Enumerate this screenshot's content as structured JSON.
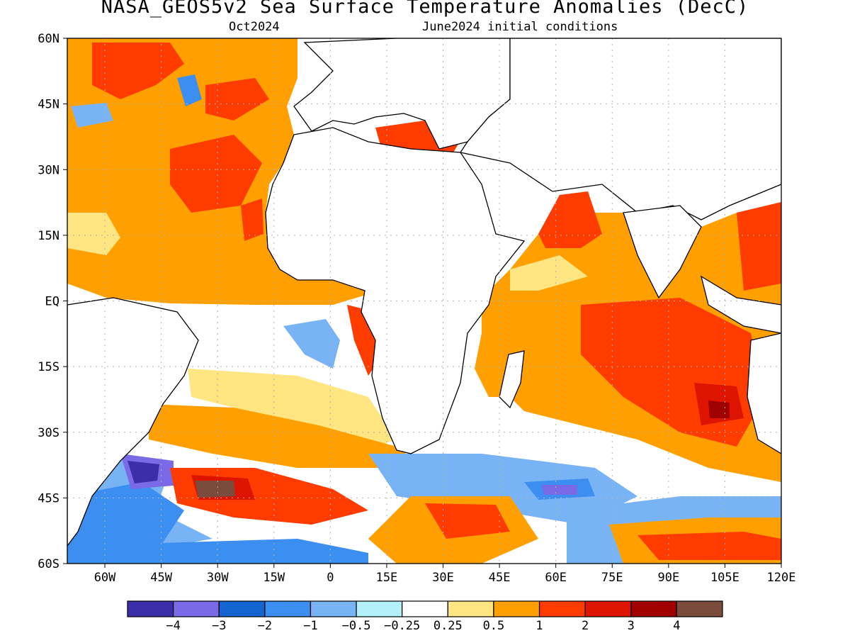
{
  "header": {
    "title": "NASA_GEOS5v2 Sea Surface Temperature Anomalies (DecC)",
    "valid_month": "Oct2024",
    "init": "June2024 initial conditions"
  },
  "map": {
    "lat_labels": [
      "60N",
      "45N",
      "30N",
      "15N",
      "EQ",
      "15S",
      "30S",
      "45S",
      "60S"
    ],
    "lon_labels": [
      "60W",
      "45W",
      "30W",
      "15W",
      "0",
      "15E",
      "30E",
      "45E",
      "60E",
      "75E",
      "90E",
      "105E",
      "120E"
    ],
    "lat_values": [
      60,
      45,
      30,
      15,
      0,
      -15,
      -30,
      -45,
      -60
    ],
    "lon_values": [
      -60,
      -45,
      -30,
      -15,
      0,
      15,
      30,
      45,
      60,
      75,
      90,
      105,
      120
    ],
    "lon_range": [
      -70,
      120
    ],
    "lat_range": [
      -60,
      60
    ],
    "grid": true
  },
  "colorbar": {
    "colors": [
      "#3c2ea8",
      "#7b6ae6",
      "#1464d2",
      "#3c8ef0",
      "#78b4f5",
      "#b4f0fa",
      "#ffffff",
      "#ffe682",
      "#ffa000",
      "#ff3c00",
      "#dc1400",
      "#a00000",
      "#7b4b3c"
    ],
    "labels": [
      "−4",
      "−3",
      "−2",
      "−1",
      "−0.5",
      "−0.25",
      "0.25",
      "0.5",
      "1",
      "2",
      "3",
      "4"
    ]
  },
  "legend_colors": {
    "land": "#ffffff",
    "coast": "#000000",
    "grid": "#b4b4b4"
  }
}
